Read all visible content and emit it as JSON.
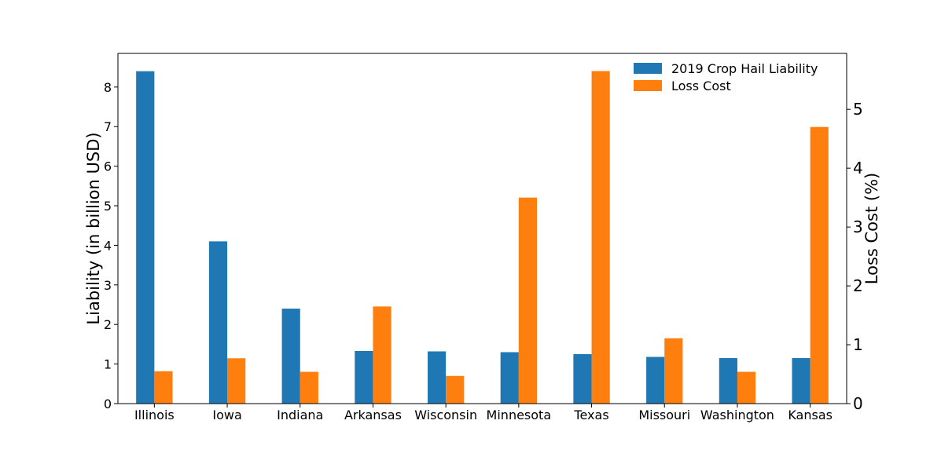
{
  "chart_data": {
    "type": "bar",
    "categories": [
      "Illinois",
      "Iowa",
      "Indiana",
      "Arkansas",
      "Wisconsin",
      "Minnesota",
      "Texas",
      "Missouri",
      "Washington",
      "Kansas"
    ],
    "series": [
      {
        "name": "2019 Crop Hail Liability",
        "axis": "left",
        "color": "#1f77b4",
        "values": [
          8.4,
          4.1,
          2.4,
          1.33,
          1.32,
          1.3,
          1.25,
          1.18,
          1.15,
          1.15
        ]
      },
      {
        "name": "Loss Cost",
        "axis": "right",
        "color": "#ff7f0e",
        "values": [
          0.55,
          0.77,
          0.54,
          1.65,
          0.47,
          3.5,
          5.65,
          1.11,
          0.54,
          4.7
        ]
      }
    ],
    "ylabel": "Liability (in billion USD)",
    "ylabel_right": "Loss Cost (%)",
    "ylim": [
      0,
      8.85
    ],
    "ylim_right": [
      0,
      5.95
    ],
    "yticks": [
      "0",
      "1",
      "2",
      "3",
      "4",
      "5",
      "6",
      "7",
      "8"
    ],
    "yticks_right": [
      "0",
      "1",
      "2",
      "3",
      "4",
      "5"
    ],
    "legend_position": "top-right",
    "grid": false
  }
}
